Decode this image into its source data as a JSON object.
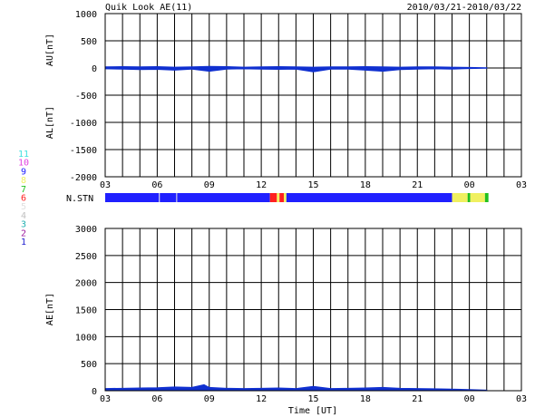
{
  "header": {
    "title": "Quik Look AE(11)",
    "date_range": "2010/03/21-2010/03/22"
  },
  "colors": {
    "trace": "#1030d0",
    "grid": "#000000",
    "background": "#ffffff"
  },
  "stn_legend": {
    "items": [
      {
        "label": "11",
        "color": "#40e0e0"
      },
      {
        "label": "10",
        "color": "#e040e0"
      },
      {
        "label": "9",
        "color": "#2020ff"
      },
      {
        "label": "8",
        "color": "#f0f060"
      },
      {
        "label": "7",
        "color": "#20c020"
      },
      {
        "label": "6",
        "color": "#ff2020"
      },
      {
        "label": "5",
        "color": "#e0e0e0"
      },
      {
        "label": "4",
        "color": "#c0c0c0"
      },
      {
        "label": "3",
        "color": "#20b0b0"
      },
      {
        "label": "2",
        "color": "#a020a0"
      },
      {
        "label": "1",
        "color": "#2020d0"
      }
    ]
  },
  "chart_data": [
    {
      "type": "line",
      "panel": "AU/AL",
      "ylabel_upper": "AU[nT]",
      "ylabel_lower": "AL[nT]",
      "ylim": [
        -2000,
        1000
      ],
      "yticks": [
        "1000",
        "500",
        "0",
        "-500",
        "-1000",
        "-1500",
        "-2000"
      ],
      "ytick_values": [
        1000,
        500,
        0,
        -500,
        -1000,
        -1500,
        -2000
      ],
      "xlim": [
        3,
        27
      ],
      "xticks": [
        "03",
        "06",
        "09",
        "12",
        "15",
        "18",
        "21",
        "00",
        "03"
      ],
      "grid": true,
      "series": [
        {
          "values_x": [
            3,
            4,
            5,
            6,
            7,
            8,
            9,
            10,
            11,
            12,
            13,
            14,
            15,
            16,
            17,
            18,
            19,
            20,
            21,
            22,
            23,
            24,
            25
          ],
          "au": [
            20,
            25,
            20,
            25,
            15,
            20,
            30,
            25,
            15,
            20,
            25,
            20,
            15,
            20,
            20,
            25,
            20,
            15,
            20,
            20,
            15,
            10,
            5
          ],
          "al": [
            -15,
            -20,
            -30,
            -25,
            -40,
            -20,
            -60,
            -20,
            -15,
            -20,
            -25,
            -20,
            -70,
            -20,
            -20,
            -40,
            -60,
            -30,
            -20,
            -15,
            -20,
            -10,
            -5
          ]
        }
      ]
    },
    {
      "type": "bar",
      "panel": "N.STN",
      "label": "N.STN",
      "segments": [
        {
          "start": 3.0,
          "end": 6.1,
          "station_count": 9
        },
        {
          "start": 6.1,
          "end": 6.15,
          "station_count": 5
        },
        {
          "start": 6.15,
          "end": 7.1,
          "station_count": 9
        },
        {
          "start": 7.1,
          "end": 7.15,
          "station_count": 5
        },
        {
          "start": 7.15,
          "end": 12.5,
          "station_count": 9
        },
        {
          "start": 12.5,
          "end": 12.9,
          "station_count": 6
        },
        {
          "start": 12.9,
          "end": 13.05,
          "station_count": 8
        },
        {
          "start": 13.05,
          "end": 13.3,
          "station_count": 6
        },
        {
          "start": 13.3,
          "end": 13.45,
          "station_count": 8
        },
        {
          "start": 13.45,
          "end": 23.0,
          "station_count": 9
        },
        {
          "start": 23.0,
          "end": 23.9,
          "station_count": 8
        },
        {
          "start": 23.9,
          "end": 24.05,
          "station_count": 7
        },
        {
          "start": 24.05,
          "end": 24.9,
          "station_count": 8
        },
        {
          "start": 24.9,
          "end": 25.1,
          "station_count": 7
        }
      ]
    },
    {
      "type": "area",
      "panel": "AE",
      "ylabel": "AE[nT]",
      "xlabel": "Time [UT]",
      "ylim": [
        0,
        3000
      ],
      "yticks": [
        "3000",
        "2500",
        "2000",
        "1500",
        "1000",
        "500",
        "0"
      ],
      "ytick_values": [
        3000,
        2500,
        2000,
        1500,
        1000,
        500,
        0
      ],
      "xlim": [
        3,
        27
      ],
      "xticks": [
        "03",
        "06",
        "09",
        "12",
        "15",
        "18",
        "21",
        "00",
        "03"
      ],
      "grid": true,
      "series": [
        {
          "x": [
            3,
            4,
            5,
            6,
            7,
            8,
            8.7,
            9,
            10,
            11,
            12,
            13,
            14,
            15,
            16,
            17,
            18,
            19,
            20,
            21,
            22,
            23,
            24,
            25
          ],
          "values": [
            40,
            45,
            50,
            55,
            70,
            60,
            110,
            60,
            45,
            40,
            45,
            50,
            40,
            80,
            40,
            45,
            50,
            60,
            45,
            40,
            35,
            30,
            20,
            10
          ]
        }
      ]
    }
  ]
}
